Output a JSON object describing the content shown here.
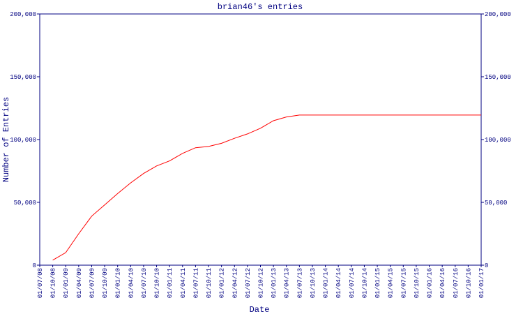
{
  "chart_data": {
    "type": "line",
    "title": "brian46's entries",
    "xlabel": "Date",
    "ylabel": "Number of Entries",
    "categories": [
      "01/07/08",
      "01/10/08",
      "01/01/09",
      "01/04/09",
      "01/07/09",
      "01/10/09",
      "01/01/10",
      "01/04/10",
      "01/07/10",
      "01/10/10",
      "01/01/11",
      "01/04/11",
      "01/07/11",
      "01/10/11",
      "01/01/12",
      "01/04/12",
      "01/07/12",
      "01/10/12",
      "01/01/13",
      "01/04/13",
      "01/07/13",
      "01/10/13",
      "01/01/14",
      "01/04/14",
      "01/07/14",
      "01/10/14",
      "01/01/15",
      "01/04/15",
      "01/07/15",
      "01/10/15",
      "01/01/16",
      "01/04/16",
      "01/07/16",
      "01/10/16",
      "01/01/17"
    ],
    "series": [
      {
        "color": "#ff0000",
        "values": [
          null,
          4000,
          10000,
          25000,
          39000,
          48000,
          57000,
          65500,
          73000,
          79000,
          83000,
          89000,
          93500,
          94500,
          97000,
          101000,
          104500,
          109000,
          115000,
          118000,
          119500,
          119500,
          119500,
          119500,
          119500,
          119500,
          119500,
          119500,
          119500,
          119500,
          119500,
          119500,
          119500,
          119500,
          119500
        ]
      }
    ],
    "ylim": [
      0,
      200000
    ],
    "yticks": [
      0,
      {
        "value": 50000,
        "label": "50,000"
      },
      {
        "value": 100000,
        "label": "100,000"
      },
      {
        "value": 150000,
        "label": "150,000"
      },
      {
        "value": 200000,
        "label": "200,000"
      }
    ],
    "y2lim": [
      0,
      200000
    ],
    "y2ticks": [
      0,
      {
        "value": 50000,
        "label": "50,000"
      },
      {
        "value": 100000,
        "label": "100,000"
      },
      {
        "value": 150000,
        "label": "150,000"
      },
      {
        "value": 200000,
        "label": "200,000"
      }
    ],
    "axis_color": "#000080"
  }
}
